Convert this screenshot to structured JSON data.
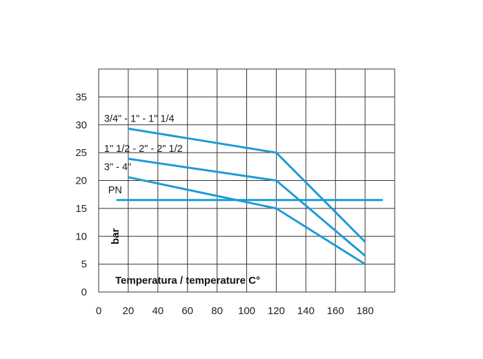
{
  "chart_data": {
    "type": "line",
    "title": "",
    "xlabel": "Temperatura / temperature C°",
    "ylabel": "bar",
    "xlim": [
      0,
      200
    ],
    "ylim": [
      0,
      40
    ],
    "x_ticks": [
      0,
      20,
      40,
      60,
      80,
      100,
      120,
      140,
      160,
      180
    ],
    "y_ticks": [
      0,
      5,
      10,
      15,
      20,
      25,
      30,
      35
    ],
    "grid": true,
    "line_color": "#1b9bd7",
    "series": [
      {
        "name": "3/4\" - 1\" - 1\" 1/4",
        "points": [
          [
            20,
            29.3
          ],
          [
            120,
            25
          ],
          [
            180,
            9
          ]
        ]
      },
      {
        "name": "1\" 1/2 - 2\" - 2\" 1/2",
        "points": [
          [
            20,
            23.9
          ],
          [
            120,
            20
          ],
          [
            180,
            6.5
          ]
        ]
      },
      {
        "name": "3\" - 4\"",
        "points": [
          [
            20,
            20.6
          ],
          [
            120,
            15
          ],
          [
            180,
            5
          ]
        ]
      },
      {
        "name": "PN",
        "points": [
          [
            12,
            16.5
          ],
          [
            192,
            16.5
          ]
        ]
      }
    ]
  }
}
